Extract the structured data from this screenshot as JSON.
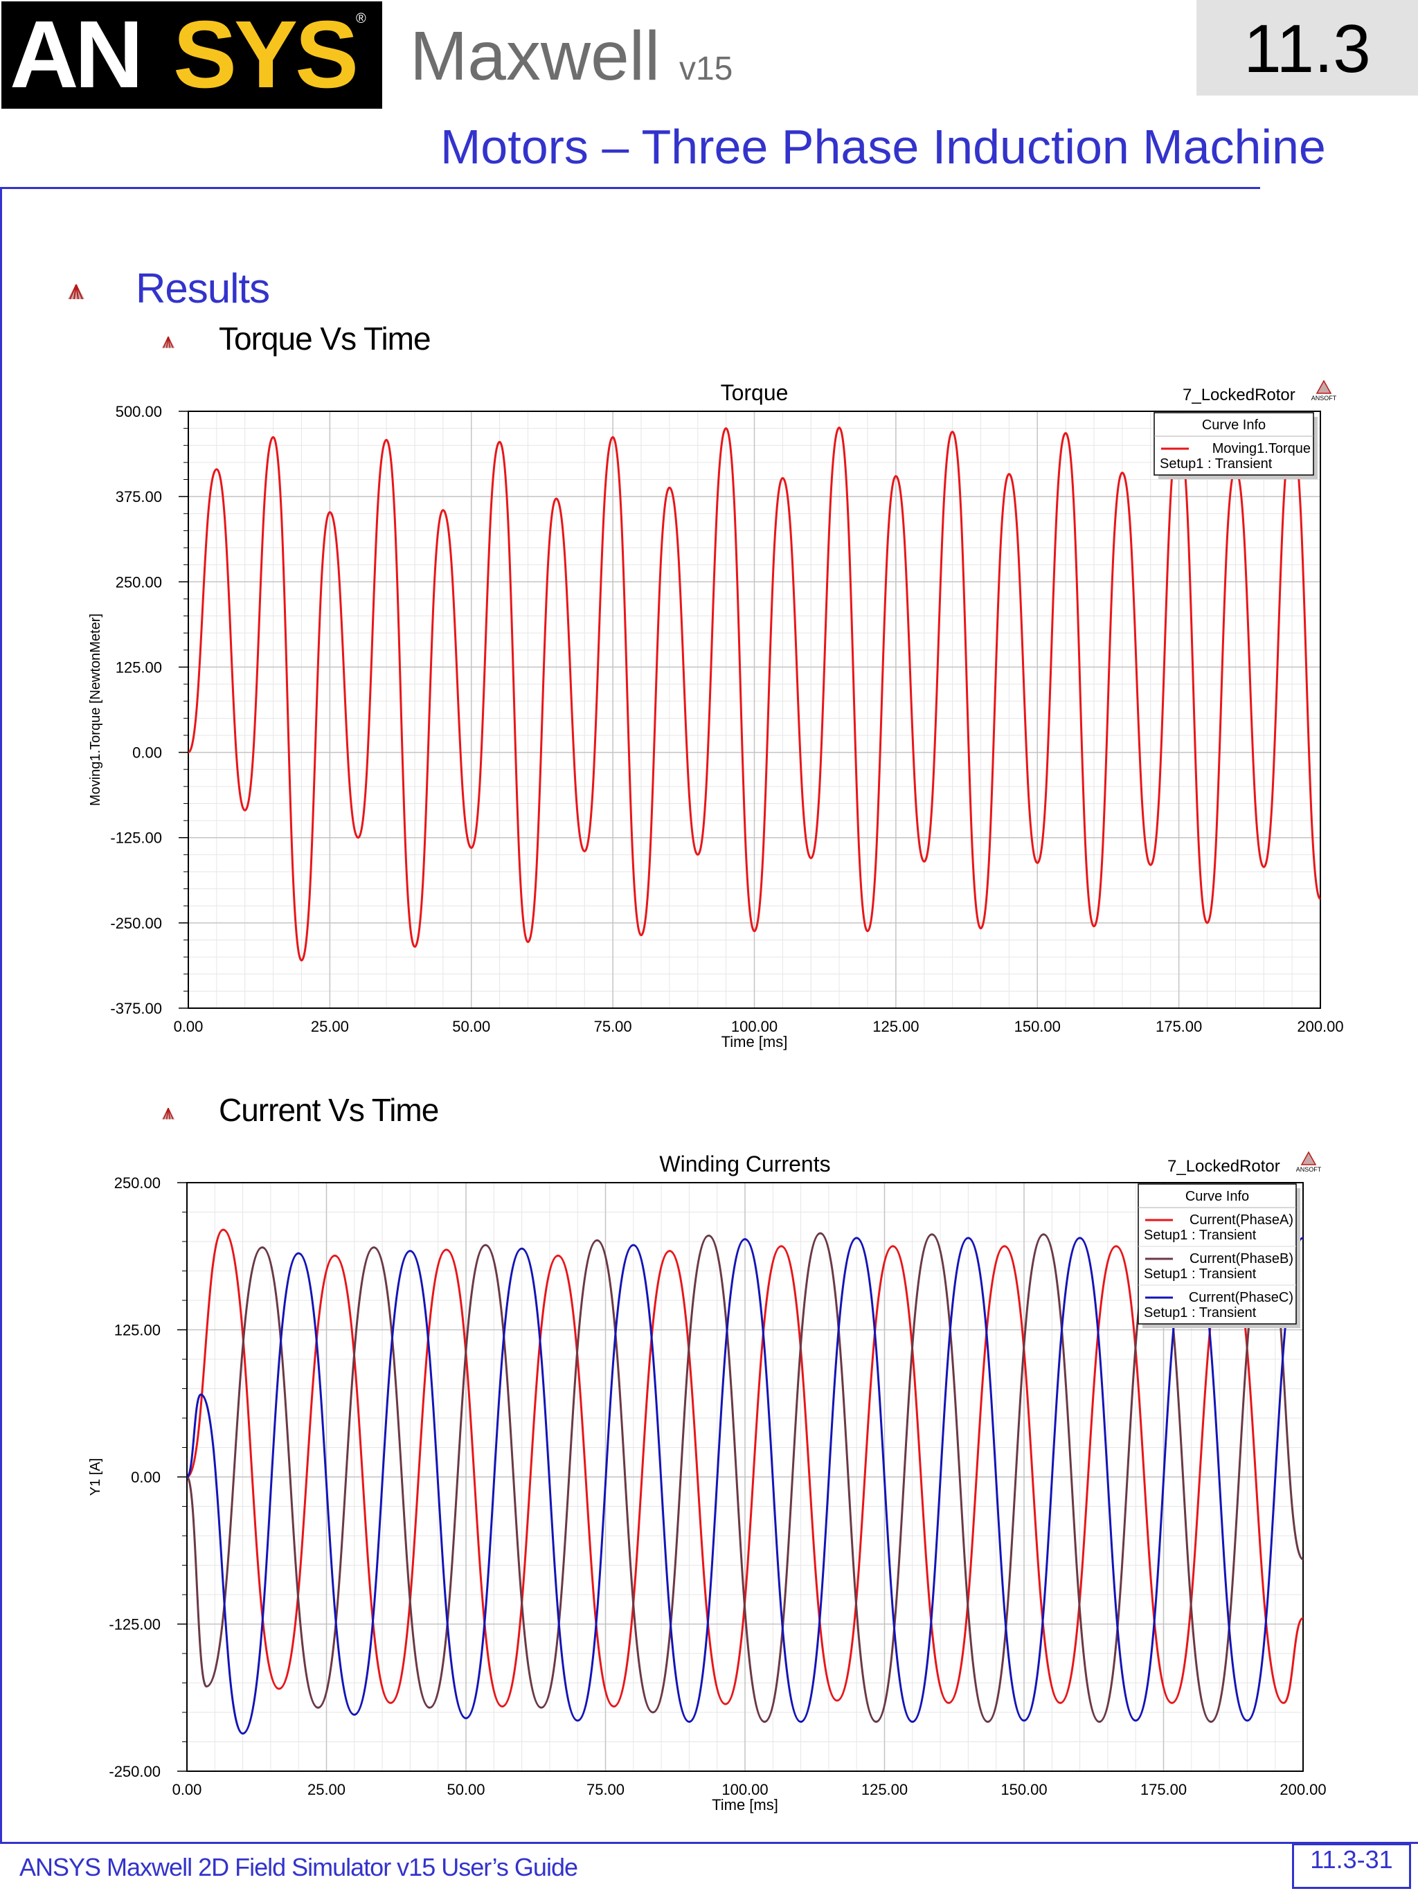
{
  "header": {
    "logo_an": "AN",
    "logo_sys": "SYS",
    "logo_reg": "®",
    "product": "Maxwell",
    "version": "v15",
    "section": "11.3"
  },
  "page_title": "Motors – Three Phase Induction Machine",
  "results_heading": "Results",
  "torque_heading": "Torque Vs Time",
  "current_heading": "Current Vs Time",
  "footer": {
    "guide": "ANSYS Maxwell 2D Field Simulator v15 User’s Guide",
    "page": "11.3-31"
  },
  "colors": {
    "accent": "#3333cc",
    "phase_a": "#e8161a",
    "phase_b": "#6b3945",
    "phase_c": "#1414b8"
  },
  "chart_data": [
    {
      "type": "line",
      "title": "Torque",
      "project_label": "7_LockedRotor",
      "logo_text": "ANSOFT",
      "xlabel": "Time [ms]",
      "ylabel": "Moving1.Torque [NewtonMeter]",
      "xlim": [
        0,
        200
      ],
      "ylim": [
        -375,
        500
      ],
      "xticks": [
        "0.00",
        "25.00",
        "50.00",
        "75.00",
        "100.00",
        "125.00",
        "150.00",
        "175.00",
        "200.00"
      ],
      "yticks": [
        "500.00",
        "375.00",
        "250.00",
        "125.00",
        "0.00",
        "-125.00",
        "-250.00",
        "-375.00"
      ],
      "grid": true,
      "legend": {
        "title": "Curve Info",
        "position": "top-right",
        "entries": [
          {
            "name": "Moving1.Torque",
            "sub": "Setup1 : Transient",
            "color": "#e8161a"
          }
        ]
      },
      "series": [
        {
          "name": "Moving1.Torque",
          "color": "#e8161a",
          "x": [
            0,
            5,
            10,
            15,
            20,
            25,
            30,
            35,
            40,
            45,
            50,
            55,
            60,
            65,
            70,
            75,
            80,
            85,
            90,
            95,
            100,
            105,
            110,
            115,
            120,
            125,
            130,
            135,
            140,
            145,
            150,
            155,
            160,
            165,
            170,
            175,
            180,
            185,
            190,
            195,
            200
          ],
          "y": [
            0,
            415,
            -85,
            462,
            -305,
            352,
            -125,
            458,
            -285,
            355,
            -140,
            455,
            -278,
            372,
            -145,
            462,
            -268,
            388,
            -150,
            475,
            -262,
            402,
            -155,
            476,
            -262,
            405,
            -160,
            470,
            -258,
            408,
            -162,
            468,
            -255,
            410,
            -165,
            468,
            -250,
            415,
            -168,
            465,
            -215
          ]
        }
      ]
    },
    {
      "type": "line",
      "title": "Winding Currents",
      "project_label": "7_LockedRotor",
      "logo_text": "ANSOFT",
      "xlabel": "Time [ms]",
      "ylabel": "Y1 [A]",
      "xlim": [
        0,
        200
      ],
      "ylim": [
        -250,
        250
      ],
      "xticks": [
        "0.00",
        "25.00",
        "50.00",
        "75.00",
        "100.00",
        "125.00",
        "150.00",
        "175.00",
        "200.00"
      ],
      "yticks": [
        "250.00",
        "125.00",
        "0.00",
        "-125.00",
        "-250.00"
      ],
      "grid": true,
      "legend": {
        "title": "Curve Info",
        "position": "top-right",
        "entries": [
          {
            "name": "Current(PhaseA)",
            "sub": "Setup1 : Transient",
            "color": "#e8161a"
          },
          {
            "name": "Current(PhaseB)",
            "sub": "Setup1 : Transient",
            "color": "#6b3945"
          },
          {
            "name": "Current(PhaseC)",
            "sub": "Setup1 : Transient",
            "color": "#1414b8"
          }
        ]
      },
      "series": [
        {
          "name": "Current(PhaseA)",
          "color": "#e8161a",
          "x": [
            0,
            6.5,
            16.5,
            26.5,
            36.5,
            46.5,
            56.5,
            66.5,
            76.5,
            86.5,
            96.5,
            106.5,
            116.5,
            126.5,
            136.5,
            146.5,
            156.5,
            166.5,
            176.5,
            186.5,
            196.5,
            200
          ],
          "y": [
            0,
            210,
            -180,
            188,
            -192,
            193,
            -195,
            188,
            -195,
            192,
            -193,
            196,
            -190,
            196,
            -192,
            196,
            -192,
            196,
            -192,
            196,
            -192,
            -120
          ]
        },
        {
          "name": "Current(PhaseB)",
          "color": "#6b3945",
          "x": [
            0,
            3.5,
            13.5,
            23.5,
            33.5,
            43.5,
            53.5,
            63.5,
            73.5,
            83.5,
            93.5,
            103.5,
            113.5,
            123.5,
            133.5,
            143.5,
            153.5,
            163.5,
            173.5,
            183.5,
            193.5,
            200
          ],
          "y": [
            0,
            -178,
            195,
            -196,
            195,
            -196,
            197,
            -196,
            201,
            -200,
            205,
            -208,
            207,
            -208,
            206,
            -208,
            206,
            -208,
            206,
            -208,
            206,
            -70
          ]
        },
        {
          "name": "Current(PhaseC)",
          "color": "#1414b8",
          "x": [
            0,
            2.5,
            10,
            20,
            30,
            40,
            50,
            60,
            70,
            80,
            90,
            100,
            110,
            120,
            130,
            140,
            150,
            160,
            170,
            180,
            190,
            200
          ],
          "y": [
            0,
            70,
            -218,
            190,
            -202,
            192,
            -205,
            194,
            -207,
            197,
            -208,
            202,
            -208,
            203,
            -208,
            203,
            -207,
            203,
            -207,
            203,
            -207,
            203
          ]
        }
      ]
    }
  ]
}
